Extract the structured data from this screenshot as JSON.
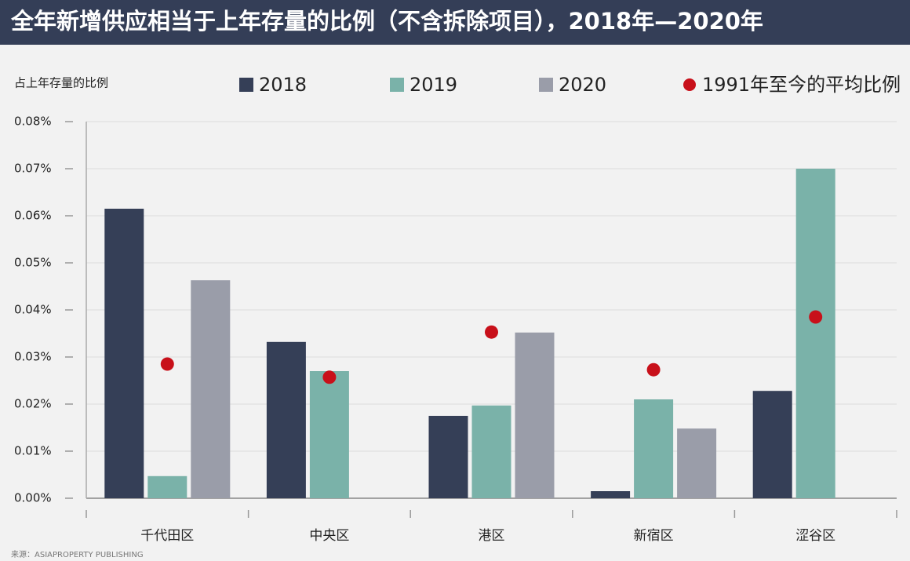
{
  "chart_data": {
    "type": "bar",
    "title": "全年新增供应相当于上年存量的比例（不含拆除项目），2018年—2020年",
    "y_label": "占上年存量的比例",
    "source": "来源：ASIAPROPERTY PUBLISHING",
    "categories": [
      "千代田区",
      "中央区",
      "港区",
      "新宿区",
      "涩谷区"
    ],
    "series": [
      {
        "name": "2018",
        "color": "#353f57",
        "marker": "bar",
        "values": [
          0.0615,
          0.0332,
          0.0175,
          0.0015,
          0.0228
        ]
      },
      {
        "name": "2019",
        "color": "#7ab2a9",
        "marker": "bar",
        "values": [
          0.0047,
          0.027,
          0.0197,
          0.021,
          0.07
        ]
      },
      {
        "name": "2020",
        "color": "#9a9da9",
        "marker": "bar",
        "values": [
          0.0463,
          null,
          0.0352,
          0.0148,
          null
        ]
      },
      {
        "name": "1991年至今的平均比例",
        "color": "#c8101a",
        "marker": "circle",
        "values": [
          0.0285,
          0.0257,
          0.0353,
          0.0273,
          0.0385
        ]
      }
    ],
    "ylim": [
      0,
      0.08
    ],
    "yticks": [
      {
        "value": 0,
        "label": "0.00%"
      },
      {
        "value": 0.01,
        "label": "0.01%"
      },
      {
        "value": 0.02,
        "label": "0.02%"
      },
      {
        "value": 0.03,
        "label": "0.03%"
      },
      {
        "value": 0.04,
        "label": "0.04%"
      },
      {
        "value": 0.05,
        "label": "0.05%"
      },
      {
        "value": 0.06,
        "label": "0.06%"
      },
      {
        "value": 0.07,
        "label": "0.07%"
      },
      {
        "value": 0.08,
        "label": "0.08%"
      }
    ],
    "grid": true
  }
}
